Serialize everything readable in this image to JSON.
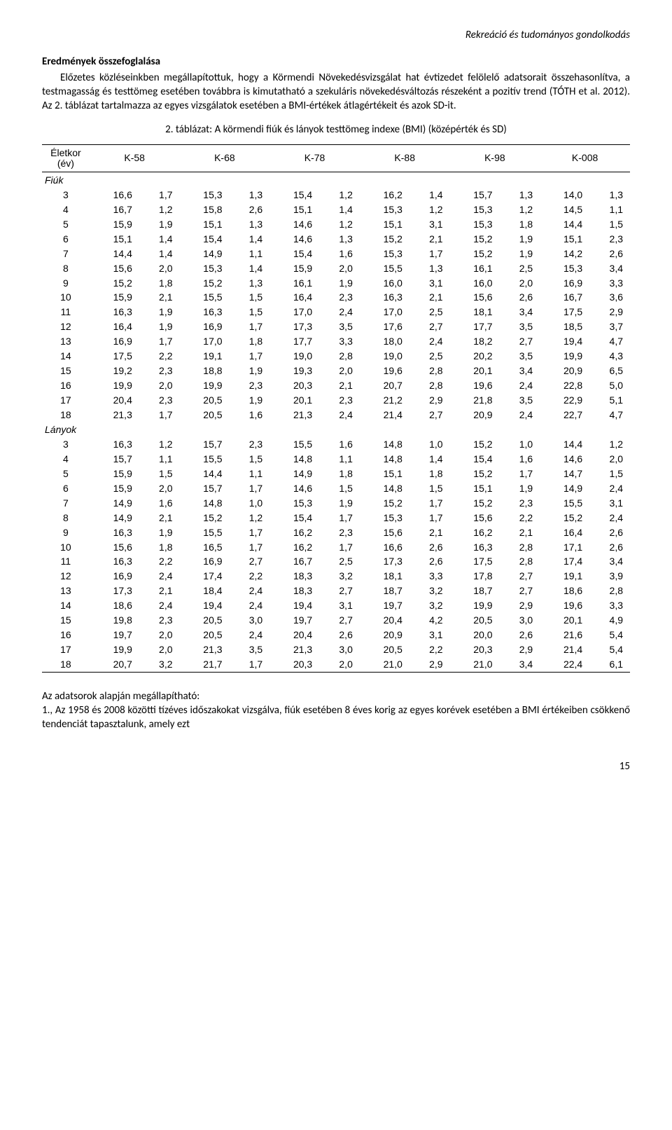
{
  "header": {
    "running_title": "Rekreáció és tudományos gondolkodás"
  },
  "section": {
    "title": "Eredmények összefoglalása",
    "para1": "Előzetes közléseinkben megállapítottuk, hogy a Körmendi Növekedésvizsgálat hat évtizedet felölelő adatsorait összehasonlítva, a testmagasság és testtömeg esetében továbbra is kimutatható a szekuláris növekedésváltozás részeként a pozitív trend (TÓTH et al. 2012). Az 2. táblázat tartalmazza az egyes vizsgálatok esetében a BMI-értékek átlagértékeit és azok SD-it.",
    "table_caption": "2. táblázat: A körmendi fiúk és lányok testtömeg indexe (BMI) (középérték és SD)"
  },
  "table": {
    "age_header_l1": "Életkor",
    "age_header_l2": "(év)",
    "columns": [
      "K-58",
      "K-68",
      "K-78",
      "K-88",
      "K-98",
      "K-008"
    ],
    "groups": [
      {
        "label": "Fiúk",
        "rows": [
          {
            "age": "3",
            "v": [
              [
                "16,6",
                "1,7"
              ],
              [
                "15,3",
                "1,3"
              ],
              [
                "15,4",
                "1,2"
              ],
              [
                "16,2",
                "1,4"
              ],
              [
                "15,7",
                "1,3"
              ],
              [
                "14,0",
                "1,3"
              ]
            ]
          },
          {
            "age": "4",
            "v": [
              [
                "16,7",
                "1,2"
              ],
              [
                "15,8",
                "2,6"
              ],
              [
                "15,1",
                "1,4"
              ],
              [
                "15,3",
                "1,2"
              ],
              [
                "15,3",
                "1,2"
              ],
              [
                "14,5",
                "1,1"
              ]
            ]
          },
          {
            "age": "5",
            "v": [
              [
                "15,9",
                "1,9"
              ],
              [
                "15,1",
                "1,3"
              ],
              [
                "14,6",
                "1,2"
              ],
              [
                "15,1",
                "3,1"
              ],
              [
                "15,3",
                "1,8"
              ],
              [
                "14,4",
                "1,5"
              ]
            ]
          },
          {
            "age": "6",
            "v": [
              [
                "15,1",
                "1,4"
              ],
              [
                "15,4",
                "1,4"
              ],
              [
                "14,6",
                "1,3"
              ],
              [
                "15,2",
                "2,1"
              ],
              [
                "15,2",
                "1,9"
              ],
              [
                "15,1",
                "2,3"
              ]
            ]
          },
          {
            "age": "7",
            "v": [
              [
                "14,4",
                "1,4"
              ],
              [
                "14,9",
                "1,1"
              ],
              [
                "15,4",
                "1,6"
              ],
              [
                "15,3",
                "1,7"
              ],
              [
                "15,2",
                "1,9"
              ],
              [
                "14,2",
                "2,6"
              ]
            ]
          },
          {
            "age": "8",
            "v": [
              [
                "15,6",
                "2,0"
              ],
              [
                "15,3",
                "1,4"
              ],
              [
                "15,9",
                "2,0"
              ],
              [
                "15,5",
                "1,3"
              ],
              [
                "16,1",
                "2,5"
              ],
              [
                "15,3",
                "3,4"
              ]
            ]
          },
          {
            "age": "9",
            "v": [
              [
                "15,2",
                "1,8"
              ],
              [
                "15,2",
                "1,3"
              ],
              [
                "16,1",
                "1,9"
              ],
              [
                "16,0",
                "3,1"
              ],
              [
                "16,0",
                "2,0"
              ],
              [
                "16,9",
                "3,3"
              ]
            ]
          },
          {
            "age": "10",
            "v": [
              [
                "15,9",
                "2,1"
              ],
              [
                "15,5",
                "1,5"
              ],
              [
                "16,4",
                "2,3"
              ],
              [
                "16,3",
                "2,1"
              ],
              [
                "15,6",
                "2,6"
              ],
              [
                "16,7",
                "3,6"
              ]
            ]
          },
          {
            "age": "11",
            "v": [
              [
                "16,3",
                "1,9"
              ],
              [
                "16,3",
                "1,5"
              ],
              [
                "17,0",
                "2,4"
              ],
              [
                "17,0",
                "2,5"
              ],
              [
                "18,1",
                "3,4"
              ],
              [
                "17,5",
                "2,9"
              ]
            ]
          },
          {
            "age": "12",
            "v": [
              [
                "16,4",
                "1,9"
              ],
              [
                "16,9",
                "1,7"
              ],
              [
                "17,3",
                "3,5"
              ],
              [
                "17,6",
                "2,7"
              ],
              [
                "17,7",
                "3,5"
              ],
              [
                "18,5",
                "3,7"
              ]
            ]
          },
          {
            "age": "13",
            "v": [
              [
                "16,9",
                "1,7"
              ],
              [
                "17,0",
                "1,8"
              ],
              [
                "17,7",
                "3,3"
              ],
              [
                "18,0",
                "2,4"
              ],
              [
                "18,2",
                "2,7"
              ],
              [
                "19,4",
                "4,7"
              ]
            ]
          },
          {
            "age": "14",
            "v": [
              [
                "17,5",
                "2,2"
              ],
              [
                "19,1",
                "1,7"
              ],
              [
                "19,0",
                "2,8"
              ],
              [
                "19,0",
                "2,5"
              ],
              [
                "20,2",
                "3,5"
              ],
              [
                "19,9",
                "4,3"
              ]
            ]
          },
          {
            "age": "15",
            "v": [
              [
                "19,2",
                "2,3"
              ],
              [
                "18,8",
                "1,9"
              ],
              [
                "19,3",
                "2,0"
              ],
              [
                "19,6",
                "2,8"
              ],
              [
                "20,1",
                "3,4"
              ],
              [
                "20,9",
                "6,5"
              ]
            ]
          },
          {
            "age": "16",
            "v": [
              [
                "19,9",
                "2,0"
              ],
              [
                "19,9",
                "2,3"
              ],
              [
                "20,3",
                "2,1"
              ],
              [
                "20,7",
                "2,8"
              ],
              [
                "19,6",
                "2,4"
              ],
              [
                "22,8",
                "5,0"
              ]
            ]
          },
          {
            "age": "17",
            "v": [
              [
                "20,4",
                "2,3"
              ],
              [
                "20,5",
                "1,9"
              ],
              [
                "20,1",
                "2,3"
              ],
              [
                "21,2",
                "2,9"
              ],
              [
                "21,8",
                "3,5"
              ],
              [
                "22,9",
                "5,1"
              ]
            ]
          },
          {
            "age": "18",
            "v": [
              [
                "21,3",
                "1,7"
              ],
              [
                "20,5",
                "1,6"
              ],
              [
                "21,3",
                "2,4"
              ],
              [
                "21,4",
                "2,7"
              ],
              [
                "20,9",
                "2,4"
              ],
              [
                "22,7",
                "4,7"
              ]
            ]
          }
        ]
      },
      {
        "label": "Lányok",
        "rows": [
          {
            "age": "3",
            "v": [
              [
                "16,3",
                "1,2"
              ],
              [
                "15,7",
                "2,3"
              ],
              [
                "15,5",
                "1,6"
              ],
              [
                "14,8",
                "1,0"
              ],
              [
                "15,2",
                "1,0"
              ],
              [
                "14,4",
                "1,2"
              ]
            ]
          },
          {
            "age": "4",
            "v": [
              [
                "15,7",
                "1,1"
              ],
              [
                "15,5",
                "1,5"
              ],
              [
                "14,8",
                "1,1"
              ],
              [
                "14,8",
                "1,4"
              ],
              [
                "15,4",
                "1,6"
              ],
              [
                "14,6",
                "2,0"
              ]
            ]
          },
          {
            "age": "5",
            "v": [
              [
                "15,9",
                "1,5"
              ],
              [
                "14,4",
                "1,1"
              ],
              [
                "14,9",
                "1,8"
              ],
              [
                "15,1",
                "1,8"
              ],
              [
                "15,2",
                "1,7"
              ],
              [
                "14,7",
                "1,5"
              ]
            ]
          },
          {
            "age": "6",
            "v": [
              [
                "15,9",
                "2,0"
              ],
              [
                "15,7",
                "1,7"
              ],
              [
                "14,6",
                "1,5"
              ],
              [
                "14,8",
                "1,5"
              ],
              [
                "15,1",
                "1,9"
              ],
              [
                "14,9",
                "2,4"
              ]
            ]
          },
          {
            "age": "7",
            "v": [
              [
                "14,9",
                "1,6"
              ],
              [
                "14,8",
                "1,0"
              ],
              [
                "15,3",
                "1,9"
              ],
              [
                "15,2",
                "1,7"
              ],
              [
                "15,2",
                "2,3"
              ],
              [
                "15,5",
                "3,1"
              ]
            ]
          },
          {
            "age": "8",
            "v": [
              [
                "14,9",
                "2,1"
              ],
              [
                "15,2",
                "1,2"
              ],
              [
                "15,4",
                "1,7"
              ],
              [
                "15,3",
                "1,7"
              ],
              [
                "15,6",
                "2,2"
              ],
              [
                "15,2",
                "2,4"
              ]
            ]
          },
          {
            "age": "9",
            "v": [
              [
                "16,3",
                "1,9"
              ],
              [
                "15,5",
                "1,7"
              ],
              [
                "16,2",
                "2,3"
              ],
              [
                "15,6",
                "2,1"
              ],
              [
                "16,2",
                "2,1"
              ],
              [
                "16,4",
                "2,6"
              ]
            ]
          },
          {
            "age": "10",
            "v": [
              [
                "15,6",
                "1,8"
              ],
              [
                "16,5",
                "1,7"
              ],
              [
                "16,2",
                "1,7"
              ],
              [
                "16,6",
                "2,6"
              ],
              [
                "16,3",
                "2,8"
              ],
              [
                "17,1",
                "2,6"
              ]
            ]
          },
          {
            "age": "11",
            "v": [
              [
                "16,3",
                "2,2"
              ],
              [
                "16,9",
                "2,7"
              ],
              [
                "16,7",
                "2,5"
              ],
              [
                "17,3",
                "2,6"
              ],
              [
                "17,5",
                "2,8"
              ],
              [
                "17,4",
                "3,4"
              ]
            ]
          },
          {
            "age": "12",
            "v": [
              [
                "16,9",
                "2,4"
              ],
              [
                "17,4",
                "2,2"
              ],
              [
                "18,3",
                "3,2"
              ],
              [
                "18,1",
                "3,3"
              ],
              [
                "17,8",
                "2,7"
              ],
              [
                "19,1",
                "3,9"
              ]
            ]
          },
          {
            "age": "13",
            "v": [
              [
                "17,3",
                "2,1"
              ],
              [
                "18,4",
                "2,4"
              ],
              [
                "18,3",
                "2,7"
              ],
              [
                "18,7",
                "3,2"
              ],
              [
                "18,7",
                "2,7"
              ],
              [
                "18,6",
                "2,8"
              ]
            ]
          },
          {
            "age": "14",
            "v": [
              [
                "18,6",
                "2,4"
              ],
              [
                "19,4",
                "2,4"
              ],
              [
                "19,4",
                "3,1"
              ],
              [
                "19,7",
                "3,2"
              ],
              [
                "19,9",
                "2,9"
              ],
              [
                "19,6",
                "3,3"
              ]
            ]
          },
          {
            "age": "15",
            "v": [
              [
                "19,8",
                "2,3"
              ],
              [
                "20,5",
                "3,0"
              ],
              [
                "19,7",
                "2,7"
              ],
              [
                "20,4",
                "4,2"
              ],
              [
                "20,5",
                "3,0"
              ],
              [
                "20,1",
                "4,9"
              ]
            ]
          },
          {
            "age": "16",
            "v": [
              [
                "19,7",
                "2,0"
              ],
              [
                "20,5",
                "2,4"
              ],
              [
                "20,4",
                "2,6"
              ],
              [
                "20,9",
                "3,1"
              ],
              [
                "20,0",
                "2,6"
              ],
              [
                "21,6",
                "5,4"
              ]
            ]
          },
          {
            "age": "17",
            "v": [
              [
                "19,9",
                "2,0"
              ],
              [
                "21,3",
                "3,5"
              ],
              [
                "21,3",
                "3,0"
              ],
              [
                "20,5",
                "2,2"
              ],
              [
                "20,3",
                "2,9"
              ],
              [
                "21,4",
                "5,4"
              ]
            ]
          },
          {
            "age": "18",
            "v": [
              [
                "20,7",
                "3,2"
              ],
              [
                "21,7",
                "1,7"
              ],
              [
                "20,3",
                "2,0"
              ],
              [
                "21,0",
                "2,9"
              ],
              [
                "21,0",
                "3,4"
              ],
              [
                "22,4",
                "6,1"
              ]
            ]
          }
        ]
      }
    ]
  },
  "footer": {
    "line1": "Az adatsorok alapján megállapítható:",
    "line2": "1., Az 1958 és 2008 közötti tízéves időszakokat vizsgálva, fiúk esetében 8 éves korig az egyes korévek esetében a BMI értékeiben csökkenő tendenciát tapasztalunk, amely ezt"
  },
  "page_number": "15"
}
